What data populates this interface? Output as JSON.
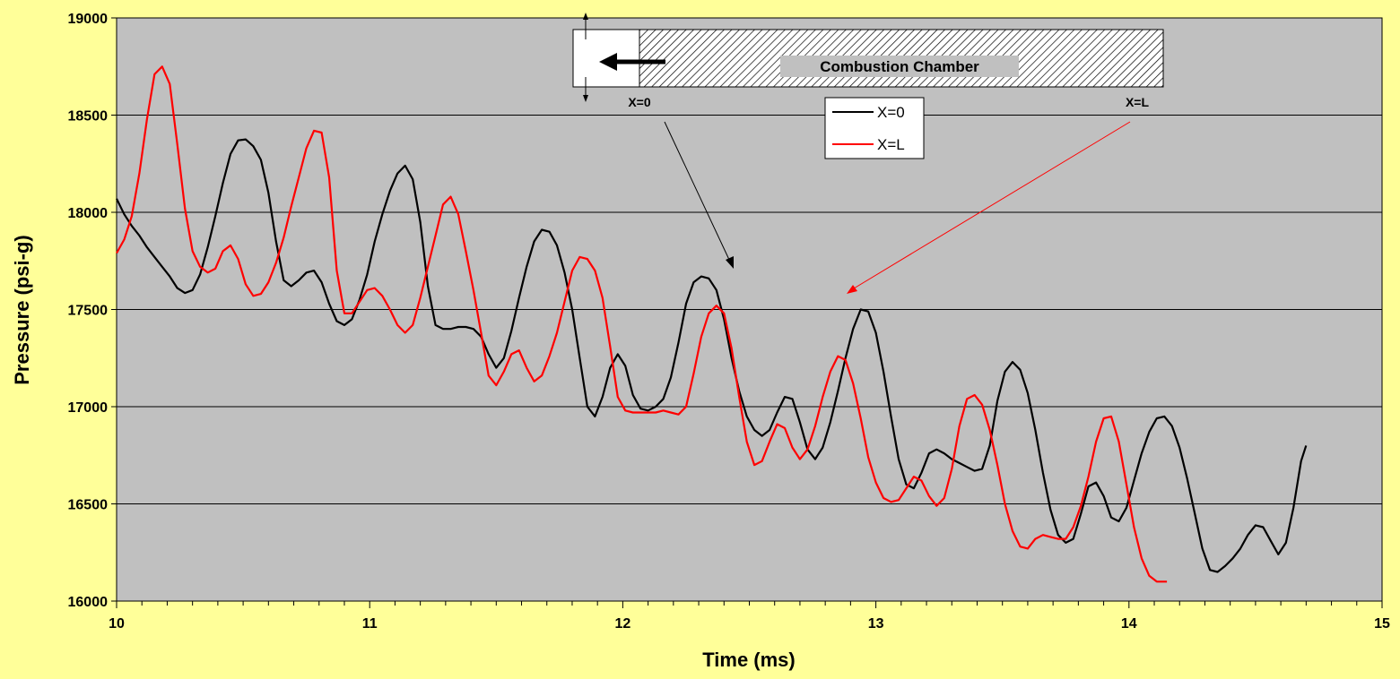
{
  "chart_data": {
    "type": "line",
    "title": "",
    "xlabel": "Time (ms)",
    "ylabel": "Pressure (psi-g)",
    "xlim": [
      10,
      15
    ],
    "ylim": [
      16000,
      19000
    ],
    "x_ticks": [
      "10",
      "11",
      "12",
      "13",
      "14",
      "15"
    ],
    "y_ticks": [
      "16000",
      "16500",
      "17000",
      "17500",
      "18000",
      "18500",
      "19000"
    ],
    "grid": "horizontal",
    "legend_position": "top-center",
    "colors": {
      "background": "#FFFF99",
      "plot_area": "#C0C0C0",
      "x0": "#000000",
      "xl": "#FF0000"
    },
    "series": [
      {
        "name": "X=0",
        "color": "#000000",
        "points": [
          [
            10.0,
            18070
          ],
          [
            10.03,
            17990
          ],
          [
            10.06,
            17930
          ],
          [
            10.09,
            17880
          ],
          [
            10.12,
            17820
          ],
          [
            10.15,
            17770
          ],
          [
            10.18,
            17720
          ],
          [
            10.21,
            17670
          ],
          [
            10.24,
            17610
          ],
          [
            10.27,
            17585
          ],
          [
            10.3,
            17600
          ],
          [
            10.33,
            17680
          ],
          [
            10.36,
            17820
          ],
          [
            10.39,
            17980
          ],
          [
            10.42,
            18150
          ],
          [
            10.45,
            18300
          ],
          [
            10.48,
            18370
          ],
          [
            10.51,
            18375
          ],
          [
            10.54,
            18340
          ],
          [
            10.57,
            18270
          ],
          [
            10.6,
            18100
          ],
          [
            10.63,
            17850
          ],
          [
            10.66,
            17650
          ],
          [
            10.69,
            17620
          ],
          [
            10.72,
            17650
          ],
          [
            10.75,
            17690
          ],
          [
            10.78,
            17700
          ],
          [
            10.81,
            17640
          ],
          [
            10.84,
            17530
          ],
          [
            10.87,
            17440
          ],
          [
            10.9,
            17420
          ],
          [
            10.93,
            17450
          ],
          [
            10.96,
            17550
          ],
          [
            10.99,
            17680
          ],
          [
            11.02,
            17850
          ],
          [
            11.05,
            17990
          ],
          [
            11.08,
            18110
          ],
          [
            11.11,
            18200
          ],
          [
            11.14,
            18240
          ],
          [
            11.17,
            18170
          ],
          [
            11.2,
            17950
          ],
          [
            11.23,
            17620
          ],
          [
            11.26,
            17420
          ],
          [
            11.29,
            17400
          ],
          [
            11.32,
            17400
          ],
          [
            11.35,
            17410
          ],
          [
            11.38,
            17410
          ],
          [
            11.41,
            17400
          ],
          [
            11.44,
            17360
          ],
          [
            11.47,
            17270
          ],
          [
            11.5,
            17200
          ],
          [
            11.53,
            17250
          ],
          [
            11.56,
            17390
          ],
          [
            11.59,
            17560
          ],
          [
            11.62,
            17720
          ],
          [
            11.65,
            17850
          ],
          [
            11.68,
            17910
          ],
          [
            11.71,
            17900
          ],
          [
            11.74,
            17830
          ],
          [
            11.77,
            17690
          ],
          [
            11.8,
            17500
          ],
          [
            11.83,
            17250
          ],
          [
            11.86,
            17000
          ],
          [
            11.89,
            16950
          ],
          [
            11.92,
            17050
          ],
          [
            11.95,
            17200
          ],
          [
            11.98,
            17270
          ],
          [
            12.01,
            17210
          ],
          [
            12.04,
            17060
          ],
          [
            12.07,
            16990
          ],
          [
            12.1,
            16980
          ],
          [
            12.13,
            17000
          ],
          [
            12.16,
            17040
          ],
          [
            12.19,
            17150
          ],
          [
            12.22,
            17330
          ],
          [
            12.25,
            17530
          ],
          [
            12.28,
            17640
          ],
          [
            12.31,
            17670
          ],
          [
            12.34,
            17660
          ],
          [
            12.37,
            17600
          ],
          [
            12.4,
            17450
          ],
          [
            12.43,
            17250
          ],
          [
            12.46,
            17080
          ],
          [
            12.49,
            16950
          ],
          [
            12.52,
            16880
          ],
          [
            12.55,
            16850
          ],
          [
            12.58,
            16880
          ],
          [
            12.61,
            16970
          ],
          [
            12.64,
            17050
          ],
          [
            12.67,
            17040
          ],
          [
            12.7,
            16920
          ],
          [
            12.73,
            16780
          ],
          [
            12.76,
            16730
          ],
          [
            12.79,
            16790
          ],
          [
            12.82,
            16920
          ],
          [
            12.85,
            17080
          ],
          [
            12.88,
            17250
          ],
          [
            12.91,
            17400
          ],
          [
            12.94,
            17500
          ],
          [
            12.97,
            17490
          ],
          [
            13.0,
            17380
          ],
          [
            13.03,
            17180
          ],
          [
            13.06,
            16950
          ],
          [
            13.09,
            16730
          ],
          [
            13.12,
            16600
          ],
          [
            13.15,
            16580
          ],
          [
            13.18,
            16660
          ],
          [
            13.21,
            16760
          ],
          [
            13.24,
            16780
          ],
          [
            13.27,
            16760
          ],
          [
            13.3,
            16730
          ],
          [
            13.33,
            16710
          ],
          [
            13.36,
            16690
          ],
          [
            13.39,
            16670
          ],
          [
            13.42,
            16680
          ],
          [
            13.45,
            16800
          ],
          [
            13.48,
            17030
          ],
          [
            13.51,
            17180
          ],
          [
            13.54,
            17230
          ],
          [
            13.57,
            17190
          ],
          [
            13.6,
            17070
          ],
          [
            13.63,
            16880
          ],
          [
            13.66,
            16660
          ],
          [
            13.69,
            16470
          ],
          [
            13.72,
            16340
          ],
          [
            13.75,
            16300
          ],
          [
            13.78,
            16320
          ],
          [
            13.81,
            16450
          ],
          [
            13.84,
            16590
          ],
          [
            13.87,
            16610
          ],
          [
            13.9,
            16540
          ],
          [
            13.93,
            16430
          ],
          [
            13.96,
            16410
          ],
          [
            13.99,
            16480
          ],
          [
            14.02,
            16620
          ],
          [
            14.05,
            16760
          ],
          [
            14.08,
            16870
          ],
          [
            14.11,
            16940
          ],
          [
            14.14,
            16950
          ],
          [
            14.17,
            16900
          ],
          [
            14.2,
            16790
          ],
          [
            14.23,
            16630
          ],
          [
            14.26,
            16450
          ],
          [
            14.29,
            16270
          ],
          [
            14.32,
            16160
          ],
          [
            14.35,
            16150
          ],
          [
            14.38,
            16180
          ],
          [
            14.41,
            16220
          ],
          [
            14.44,
            16270
          ],
          [
            14.47,
            16340
          ],
          [
            14.5,
            16390
          ],
          [
            14.53,
            16380
          ],
          [
            14.56,
            16310
          ],
          [
            14.59,
            16240
          ],
          [
            14.62,
            16300
          ],
          [
            14.65,
            16480
          ],
          [
            14.68,
            16720
          ],
          [
            14.7,
            16800
          ]
        ]
      },
      {
        "name": "X=L",
        "color": "#FF0000",
        "points": [
          [
            10.0,
            17790
          ],
          [
            10.03,
            17860
          ],
          [
            10.06,
            17980
          ],
          [
            10.09,
            18200
          ],
          [
            10.12,
            18480
          ],
          [
            10.15,
            18710
          ],
          [
            10.18,
            18750
          ],
          [
            10.21,
            18660
          ],
          [
            10.24,
            18350
          ],
          [
            10.27,
            18020
          ],
          [
            10.3,
            17800
          ],
          [
            10.33,
            17720
          ],
          [
            10.36,
            17690
          ],
          [
            10.39,
            17710
          ],
          [
            10.42,
            17800
          ],
          [
            10.45,
            17830
          ],
          [
            10.48,
            17760
          ],
          [
            10.51,
            17630
          ],
          [
            10.54,
            17570
          ],
          [
            10.57,
            17580
          ],
          [
            10.6,
            17640
          ],
          [
            10.63,
            17740
          ],
          [
            10.66,
            17870
          ],
          [
            10.69,
            18030
          ],
          [
            10.72,
            18180
          ],
          [
            10.75,
            18330
          ],
          [
            10.78,
            18420
          ],
          [
            10.81,
            18410
          ],
          [
            10.84,
            18180
          ],
          [
            10.87,
            17700
          ],
          [
            10.9,
            17480
          ],
          [
            10.93,
            17480
          ],
          [
            10.96,
            17540
          ],
          [
            10.99,
            17600
          ],
          [
            11.02,
            17610
          ],
          [
            11.05,
            17570
          ],
          [
            11.08,
            17500
          ],
          [
            11.11,
            17420
          ],
          [
            11.14,
            17380
          ],
          [
            11.17,
            17420
          ],
          [
            11.2,
            17560
          ],
          [
            11.23,
            17720
          ],
          [
            11.26,
            17880
          ],
          [
            11.29,
            18040
          ],
          [
            11.32,
            18080
          ],
          [
            11.35,
            17990
          ],
          [
            11.38,
            17800
          ],
          [
            11.41,
            17600
          ],
          [
            11.44,
            17380
          ],
          [
            11.47,
            17160
          ],
          [
            11.5,
            17110
          ],
          [
            11.53,
            17180
          ],
          [
            11.56,
            17270
          ],
          [
            11.59,
            17290
          ],
          [
            11.62,
            17200
          ],
          [
            11.65,
            17130
          ],
          [
            11.68,
            17160
          ],
          [
            11.71,
            17260
          ],
          [
            11.74,
            17380
          ],
          [
            11.77,
            17540
          ],
          [
            11.8,
            17700
          ],
          [
            11.83,
            17770
          ],
          [
            11.86,
            17760
          ],
          [
            11.89,
            17700
          ],
          [
            11.92,
            17560
          ],
          [
            11.95,
            17310
          ],
          [
            11.98,
            17050
          ],
          [
            12.01,
            16980
          ],
          [
            12.04,
            16970
          ],
          [
            12.07,
            16970
          ],
          [
            12.1,
            16970
          ],
          [
            12.13,
            16970
          ],
          [
            12.16,
            16980
          ],
          [
            12.19,
            16970
          ],
          [
            12.22,
            16960
          ],
          [
            12.25,
            17000
          ],
          [
            12.28,
            17170
          ],
          [
            12.31,
            17360
          ],
          [
            12.34,
            17480
          ],
          [
            12.37,
            17520
          ],
          [
            12.4,
            17480
          ],
          [
            12.43,
            17300
          ],
          [
            12.46,
            17050
          ],
          [
            12.49,
            16820
          ],
          [
            12.52,
            16700
          ],
          [
            12.55,
            16720
          ],
          [
            12.58,
            16820
          ],
          [
            12.61,
            16910
          ],
          [
            12.64,
            16890
          ],
          [
            12.67,
            16790
          ],
          [
            12.7,
            16730
          ],
          [
            12.73,
            16780
          ],
          [
            12.76,
            16900
          ],
          [
            12.79,
            17050
          ],
          [
            12.82,
            17180
          ],
          [
            12.85,
            17260
          ],
          [
            12.88,
            17240
          ],
          [
            12.91,
            17120
          ],
          [
            12.94,
            16940
          ],
          [
            12.97,
            16740
          ],
          [
            13.0,
            16610
          ],
          [
            13.03,
            16530
          ],
          [
            13.06,
            16510
          ],
          [
            13.09,
            16520
          ],
          [
            13.12,
            16580
          ],
          [
            13.15,
            16640
          ],
          [
            13.18,
            16620
          ],
          [
            13.21,
            16540
          ],
          [
            13.24,
            16490
          ],
          [
            13.27,
            16530
          ],
          [
            13.3,
            16680
          ],
          [
            13.33,
            16900
          ],
          [
            13.36,
            17040
          ],
          [
            13.39,
            17060
          ],
          [
            13.42,
            17010
          ],
          [
            13.45,
            16880
          ],
          [
            13.48,
            16700
          ],
          [
            13.51,
            16500
          ],
          [
            13.54,
            16360
          ],
          [
            13.57,
            16280
          ],
          [
            13.6,
            16270
          ],
          [
            13.63,
            16320
          ],
          [
            13.66,
            16340
          ],
          [
            13.69,
            16330
          ],
          [
            13.72,
            16320
          ],
          [
            13.75,
            16320
          ],
          [
            13.78,
            16380
          ],
          [
            13.81,
            16490
          ],
          [
            13.84,
            16640
          ],
          [
            13.87,
            16820
          ],
          [
            13.9,
            16940
          ],
          [
            13.93,
            16950
          ],
          [
            13.96,
            16820
          ],
          [
            13.99,
            16600
          ],
          [
            14.02,
            16380
          ],
          [
            14.05,
            16220
          ],
          [
            14.08,
            16130
          ],
          [
            14.11,
            16100
          ],
          [
            14.14,
            16100
          ],
          [
            14.15,
            16100
          ]
        ]
      }
    ],
    "annotations": {
      "chamber_label": "Combustion Chamber",
      "x0_marker": "X=0",
      "xl_marker": "X=L"
    }
  }
}
